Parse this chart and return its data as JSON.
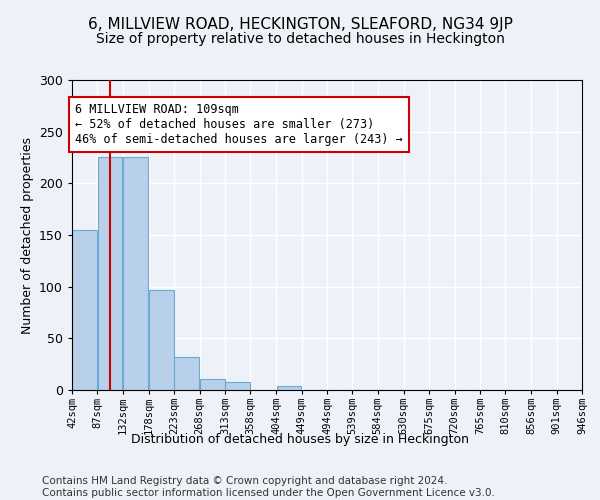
{
  "title": "6, MILLVIEW ROAD, HECKINGTON, SLEAFORD, NG34 9JP",
  "subtitle": "Size of property relative to detached houses in Heckington",
  "xlabel": "Distribution of detached houses by size in Heckington",
  "ylabel": "Number of detached properties",
  "bar_edges": [
    42,
    87,
    132,
    178,
    223,
    268,
    313,
    358,
    404,
    449,
    494,
    539,
    584,
    630,
    675,
    720,
    765,
    810,
    856,
    901,
    946
  ],
  "bar_heights": [
    155,
    225,
    225,
    97,
    32,
    11,
    8,
    0,
    4,
    0,
    0,
    0,
    0,
    0,
    0,
    0,
    0,
    0,
    0,
    0
  ],
  "bar_color": "#b8d0ea",
  "bar_edge_color": "#6aaad4",
  "property_sqm": 109,
  "vline_color": "#cc0000",
  "annotation_text": "6 MILLVIEW ROAD: 109sqm\n← 52% of detached houses are smaller (273)\n46% of semi-detached houses are larger (243) →",
  "annotation_box_color": "#ffffff",
  "annotation_box_edge": "#cc0000",
  "ylim": [
    0,
    300
  ],
  "tick_labels": [
    "42sqm",
    "87sqm",
    "132sqm",
    "178sqm",
    "223sqm",
    "268sqm",
    "313sqm",
    "358sqm",
    "404sqm",
    "449sqm",
    "494sqm",
    "539sqm",
    "584sqm",
    "630sqm",
    "675sqm",
    "720sqm",
    "765sqm",
    "810sqm",
    "856sqm",
    "901sqm",
    "946sqm"
  ],
  "footnote": "Contains HM Land Registry data © Crown copyright and database right 2024.\nContains public sector information licensed under the Open Government Licence v3.0.",
  "bg_color": "#eef2f8",
  "grid_color": "#ffffff",
  "title_fontsize": 11,
  "subtitle_fontsize": 10,
  "label_fontsize": 9,
  "tick_fontsize": 7.5,
  "footnote_fontsize": 7.5,
  "annotation_fontsize": 8.5
}
